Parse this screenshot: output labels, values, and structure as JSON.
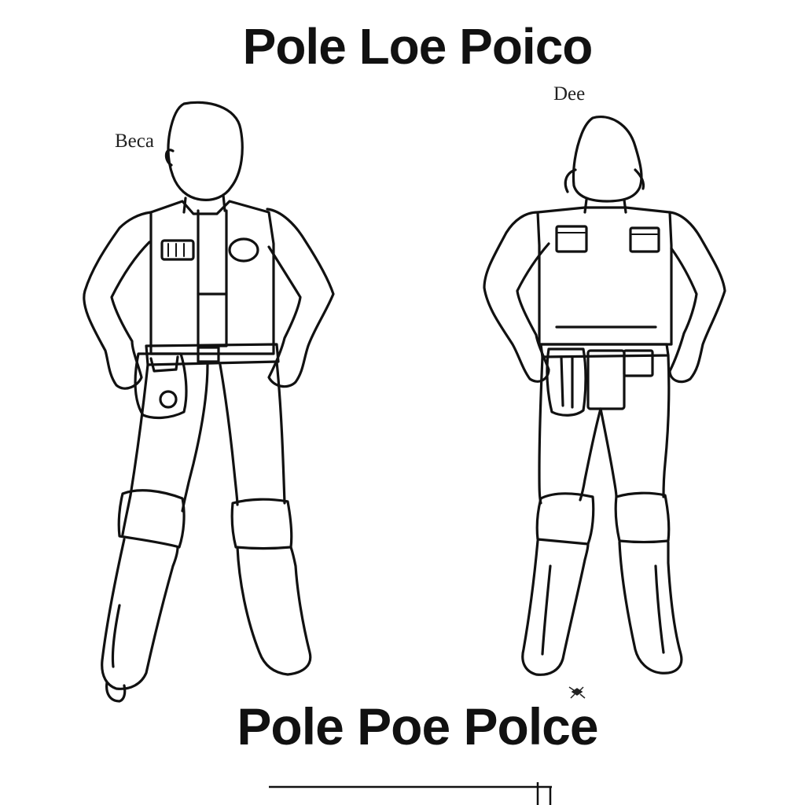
{
  "page": {
    "title_top": "Pole Loe Poico",
    "title_bottom": "Pole Poe Polce",
    "label_left": "Beca",
    "label_right": "Dee"
  },
  "colors": {
    "ink": "#111111",
    "paper": "#ffffff"
  },
  "figures": [
    {
      "view": "front-icon"
    },
    {
      "view": "back-icon"
    }
  ]
}
